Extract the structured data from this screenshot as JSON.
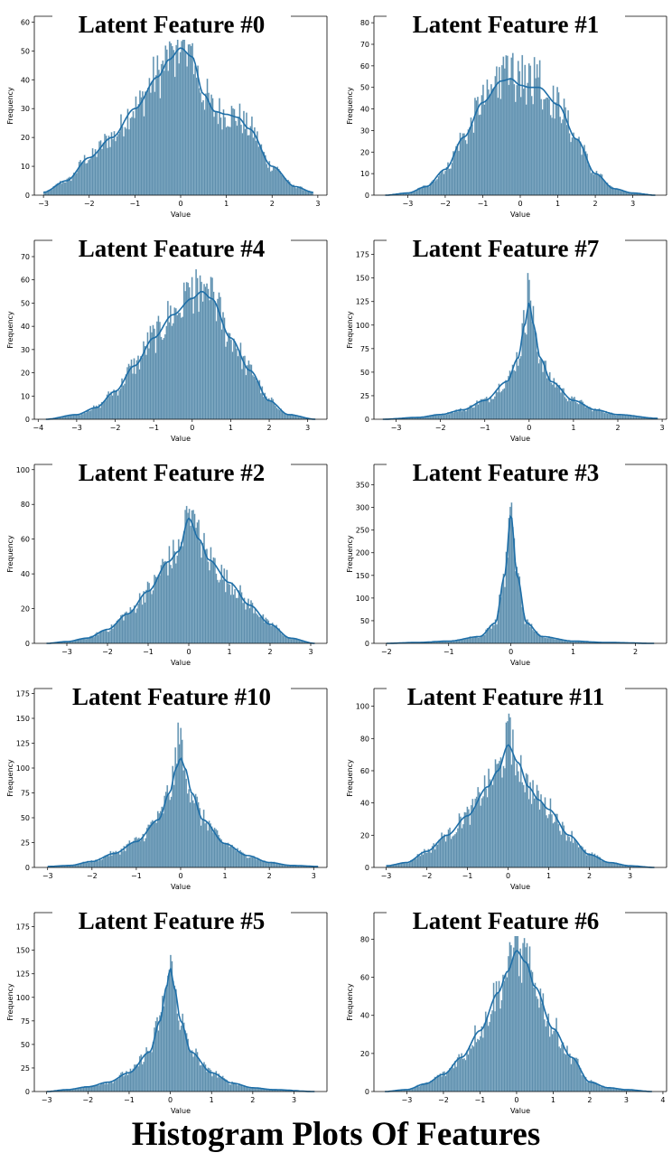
{
  "page_title": "Histogram Plots Of Features",
  "chart_data": [
    {
      "type": "bar",
      "title": "Latent Feature #0",
      "xlabel": "Value",
      "ylabel": "Frequency",
      "xlim": [
        -3.2,
        3.2
      ],
      "ylim": [
        0,
        62
      ],
      "xticks": [
        -3,
        -2,
        -1,
        0,
        1,
        2,
        3
      ],
      "yticks": [
        0,
        10,
        20,
        30,
        40,
        50,
        60
      ],
      "range": [
        -3.0,
        2.9
      ],
      "kde": {
        "x": [
          -3.0,
          -2.5,
          -2.0,
          -1.5,
          -1.0,
          -0.5,
          -0.25,
          0.0,
          0.25,
          0.5,
          0.75,
          1.0,
          1.25,
          1.5,
          2.0,
          2.5,
          2.9
        ],
        "y": [
          1,
          5,
          13,
          20,
          30,
          41,
          47,
          51,
          48,
          35,
          29,
          28,
          27,
          23,
          10,
          3,
          1
        ]
      },
      "peak": 55
    },
    {
      "type": "bar",
      "title": "Latent Feature #1",
      "xlabel": "Value",
      "ylabel": "Frequency",
      "xlim": [
        -3.9,
        3.9
      ],
      "ylim": [
        0,
        83
      ],
      "xticks": [
        -3,
        -2,
        -1,
        0,
        1,
        2,
        3
      ],
      "yticks": [
        0,
        10,
        20,
        30,
        40,
        50,
        60,
        70,
        80
      ],
      "range": [
        -3.6,
        3.6
      ],
      "kde": {
        "x": [
          -3.6,
          -3.0,
          -2.5,
          -2.0,
          -1.5,
          -1.0,
          -0.5,
          -0.25,
          0.0,
          0.25,
          0.5,
          1.0,
          1.5,
          2.0,
          2.5,
          3.0,
          3.6
        ],
        "y": [
          0,
          1,
          4,
          12,
          27,
          43,
          53,
          54,
          51,
          50,
          50,
          42,
          26,
          10,
          3,
          1,
          0
        ]
      },
      "peak": 66
    },
    {
      "type": "bar",
      "title": "Latent Feature #4",
      "xlabel": "Value",
      "ylabel": "Frequency",
      "xlim": [
        -4.1,
        3.5
      ],
      "ylim": [
        0,
        77
      ],
      "xticks": [
        -4,
        -3,
        -2,
        -1,
        0,
        1,
        2,
        3
      ],
      "yticks": [
        0,
        10,
        20,
        30,
        40,
        50,
        60,
        70
      ],
      "range": [
        -3.8,
        3.2
      ],
      "kde": {
        "x": [
          -3.8,
          -3.0,
          -2.5,
          -2.0,
          -1.5,
          -1.0,
          -0.5,
          0.0,
          0.25,
          0.5,
          1.0,
          1.5,
          2.0,
          2.5,
          3.2
        ],
        "y": [
          0,
          2,
          5,
          12,
          23,
          35,
          45,
          52,
          55,
          52,
          35,
          21,
          8,
          2,
          0
        ]
      },
      "peak": 61
    },
    {
      "type": "bar",
      "title": "Latent Feature #7",
      "xlabel": "Value",
      "ylabel": "Frequency",
      "xlim": [
        -3.5,
        3.1
      ],
      "ylim": [
        0,
        190
      ],
      "xticks": [
        -3,
        -2,
        -1,
        0,
        1,
        2,
        3
      ],
      "yticks": [
        0,
        25,
        50,
        75,
        100,
        125,
        150,
        175
      ],
      "range": [
        -3.3,
        2.9
      ],
      "kde": {
        "x": [
          -3.3,
          -2.5,
          -2.0,
          -1.5,
          -1.0,
          -0.5,
          -0.25,
          -0.1,
          0.0,
          0.1,
          0.25,
          0.5,
          1.0,
          1.5,
          2.0,
          2.9
        ],
        "y": [
          0,
          2,
          5,
          10,
          20,
          40,
          65,
          100,
          124,
          100,
          65,
          40,
          20,
          10,
          5,
          1
        ]
      },
      "peak": 157
    },
    {
      "type": "bar",
      "title": "Latent Feature #2",
      "xlabel": "Value",
      "ylabel": "Frequency",
      "xlim": [
        -3.8,
        3.4
      ],
      "ylim": [
        0,
        103
      ],
      "xticks": [
        -3,
        -2,
        -1,
        0,
        1,
        2,
        3
      ],
      "yticks": [
        0,
        20,
        40,
        60,
        80,
        100
      ],
      "range": [
        -3.5,
        3.1
      ],
      "kde": {
        "x": [
          -3.5,
          -3.0,
          -2.5,
          -2.0,
          -1.5,
          -1.0,
          -0.5,
          -0.25,
          0.0,
          0.25,
          0.5,
          1.0,
          1.5,
          2.0,
          2.5,
          3.1
        ],
        "y": [
          0,
          1,
          3,
          8,
          17,
          30,
          47,
          53,
          72,
          60,
          48,
          35,
          22,
          11,
          3,
          0
        ]
      },
      "peak": 85
    },
    {
      "type": "bar",
      "title": "Latent Feature #3",
      "xlabel": "Value",
      "ylabel": "Frequency",
      "xlim": [
        -2.2,
        2.5
      ],
      "ylim": [
        0,
        395
      ],
      "xticks": [
        -2,
        -1,
        0,
        1,
        2
      ],
      "yticks": [
        0,
        50,
        100,
        150,
        200,
        250,
        300,
        350
      ],
      "range": [
        -2.0,
        2.3
      ],
      "kde": {
        "x": [
          -2.0,
          -1.5,
          -1.0,
          -0.5,
          -0.25,
          -0.1,
          0.0,
          0.1,
          0.25,
          0.5,
          1.0,
          1.5,
          2.3
        ],
        "y": [
          0,
          2,
          5,
          15,
          45,
          150,
          285,
          150,
          45,
          15,
          5,
          2,
          0
        ]
      },
      "peak": 330
    },
    {
      "type": "bar",
      "title": "Latent Feature #10",
      "xlabel": "Value",
      "ylabel": "Frequency",
      "xlim": [
        -3.3,
        3.3
      ],
      "ylim": [
        0,
        180
      ],
      "xticks": [
        -3,
        -2,
        -1,
        0,
        1,
        2,
        3
      ],
      "yticks": [
        0,
        25,
        50,
        75,
        100,
        125,
        150,
        175
      ],
      "range": [
        -3.0,
        3.1
      ],
      "kde": {
        "x": [
          -3.0,
          -2.5,
          -2.0,
          -1.5,
          -1.0,
          -0.5,
          -0.25,
          -0.1,
          0.0,
          0.1,
          0.25,
          0.5,
          1.0,
          1.5,
          2.0,
          2.5,
          3.1
        ],
        "y": [
          1,
          2,
          6,
          14,
          26,
          48,
          75,
          100,
          110,
          100,
          75,
          48,
          24,
          12,
          5,
          2,
          1
        ]
      },
      "peak": 151
    },
    {
      "type": "bar",
      "title": "Latent Feature #11",
      "xlabel": "Value",
      "ylabel": "Frequency",
      "xlim": [
        -3.3,
        3.9
      ],
      "ylim": [
        0,
        111
      ],
      "xticks": [
        -3,
        -2,
        -1,
        0,
        1,
        2,
        3
      ],
      "yticks": [
        0,
        20,
        40,
        60,
        80,
        100
      ],
      "range": [
        -3.0,
        3.6
      ],
      "kde": {
        "x": [
          -3.0,
          -2.5,
          -2.0,
          -1.5,
          -1.0,
          -0.5,
          -0.25,
          0.0,
          0.25,
          0.5,
          0.75,
          1.0,
          1.5,
          2.0,
          2.5,
          3.0,
          3.6
        ],
        "y": [
          1,
          3,
          10,
          20,
          32,
          50,
          60,
          76,
          65,
          50,
          42,
          36,
          20,
          8,
          3,
          1,
          0
        ]
      },
      "peak": 96
    },
    {
      "type": "bar",
      "title": "Latent Feature #5",
      "xlabel": "Value",
      "ylabel": "Frequency",
      "xlim": [
        -3.3,
        3.8
      ],
      "ylim": [
        0,
        190
      ],
      "xticks": [
        -3,
        -2,
        -1,
        0,
        1,
        2,
        3
      ],
      "yticks": [
        0,
        25,
        50,
        75,
        100,
        125,
        150,
        175
      ],
      "range": [
        -3.0,
        3.5
      ],
      "kde": {
        "x": [
          -3.0,
          -2.5,
          -2.0,
          -1.5,
          -1.0,
          -0.5,
          -0.25,
          -0.1,
          0.0,
          0.1,
          0.25,
          0.5,
          1.0,
          1.5,
          2.0,
          2.5,
          3.5
        ],
        "y": [
          0,
          2,
          5,
          10,
          20,
          42,
          75,
          110,
          131,
          110,
          75,
          42,
          20,
          9,
          4,
          2,
          0
        ]
      },
      "peak": 159
    },
    {
      "type": "bar",
      "title": "Latent Feature #6",
      "xlabel": "Value",
      "ylabel": "Frequency",
      "xlim": [
        -3.9,
        4.1
      ],
      "ylim": [
        0,
        94
      ],
      "xticks": [
        -3,
        -2,
        -1,
        0,
        1,
        2,
        3,
        4
      ],
      "yticks": [
        0,
        20,
        40,
        60,
        80
      ],
      "range": [
        -3.6,
        3.7
      ],
      "kde": {
        "x": [
          -3.6,
          -3.0,
          -2.5,
          -2.0,
          -1.5,
          -1.0,
          -0.5,
          -0.25,
          0.0,
          0.25,
          0.5,
          1.0,
          1.5,
          2.0,
          2.5,
          3.0,
          3.7
        ],
        "y": [
          0,
          1,
          4,
          9,
          18,
          32,
          52,
          63,
          74,
          68,
          55,
          33,
          18,
          5,
          2,
          1,
          0
        ]
      },
      "peak": 83
    }
  ]
}
